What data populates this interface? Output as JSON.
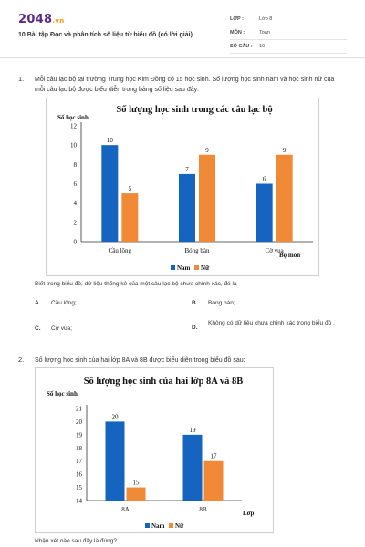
{
  "header": {
    "logo": "2048",
    "logo_suffix": ".vn",
    "title": "10 Bài tập Đọc và phân tích số liệu từ biểu đồ (có lời giải)",
    "meta": [
      {
        "key": "LỚP :",
        "value": "Lớp 8"
      },
      {
        "key": "MÔN :",
        "value": "Toán"
      },
      {
        "key": "SỐ CÂU :",
        "value": "10"
      }
    ]
  },
  "q1": {
    "number": "1.",
    "text": "Mỗi câu lạc bộ tại trường Trung học Kim Đồng có 15 học sinh. Số lượng học sinh nam và học sinh nữ của mỗi câu lạc bộ được biểu diễn trong bảng số liệu sau đây:",
    "after": "Biết trong biểu đồ, dữ liệu thống kê của một câu lạc bộ chưa chính xác, đó là",
    "options": [
      {
        "key": "A.",
        "text": "Cầu lông;"
      },
      {
        "key": "B.",
        "text": "Bóng bàn;"
      },
      {
        "key": "C.",
        "text": "Cờ vua;"
      },
      {
        "key": "D.",
        "text": "Không có dữ liệu chưa chính xác trong biểu đồ ."
      }
    ]
  },
  "q2": {
    "number": "2.",
    "text": "Số lượng học sinh của hai lớp 8A và 8B được biểu diễn trong biểu đồ sau:",
    "after": "Nhận xét nào sau đây là đúng?"
  },
  "chart_data": [
    {
      "type": "bar",
      "title": "Số lượng học sinh trong các câu lạc bộ",
      "ylabel": "Số học sinh",
      "xlabel": "Bộ môn",
      "categories": [
        "Cầu lông",
        "Bóng bàn",
        "Cờ vua"
      ],
      "ylim": [
        0,
        12
      ],
      "yticks": [
        0,
        2,
        4,
        6,
        8,
        10,
        12
      ],
      "series": [
        {
          "name": "Nam",
          "color": "#1565c0",
          "values": [
            10,
            7,
            6
          ]
        },
        {
          "name": "Nữ",
          "color": "#f08a36",
          "values": [
            5,
            9,
            9
          ]
        }
      ],
      "legend": "bottom"
    },
    {
      "type": "bar",
      "title": "Số lượng học sinh của hai lớp 8A và 8B",
      "ylabel": "Số học sinh",
      "xlabel": "Lớp",
      "categories": [
        "8A",
        "8B"
      ],
      "ylim": [
        14,
        21
      ],
      "yticks": [
        14,
        15,
        16,
        17,
        18,
        19,
        20,
        21
      ],
      "series": [
        {
          "name": "Nam",
          "color": "#1565c0",
          "values": [
            20,
            19
          ]
        },
        {
          "name": "Nữ",
          "color": "#f08a36",
          "values": [
            15,
            17
          ]
        }
      ],
      "legend": "bottom"
    }
  ]
}
